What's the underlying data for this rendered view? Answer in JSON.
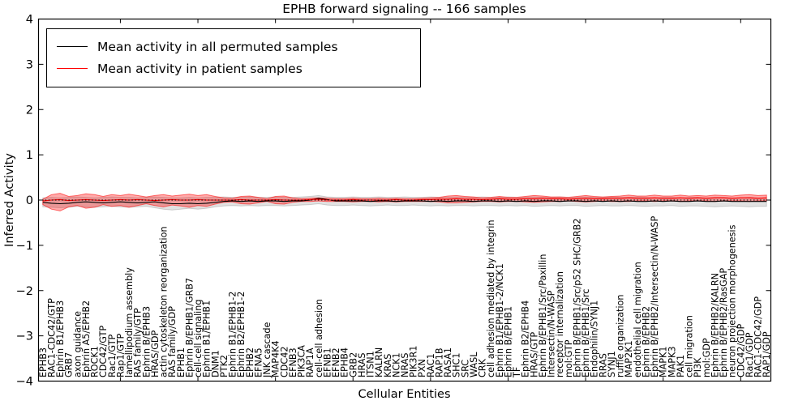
{
  "title": "EPHB forward signaling -- 166 samples",
  "axes": {
    "xlabel": "Cellular Entities",
    "ylabel": "Inferred Activity",
    "yticks": [
      4,
      3,
      2,
      1,
      0,
      -1,
      -2,
      -3,
      -4
    ]
  },
  "legend": [
    {
      "label": "Mean activity in all permuted samples",
      "color": "#000000"
    },
    {
      "label": "Mean activity in patient samples",
      "color": "#ff0000"
    }
  ],
  "colors": {
    "permuted_line": "#000000",
    "permuted_band": "#888888",
    "patient_line": "#ff0000",
    "patient_band": "#ff0000",
    "zero_line": "#000000"
  },
  "chart_data": {
    "type": "line",
    "title": "EPHB forward signaling -- 166 samples",
    "xlabel": "Cellular Entities",
    "ylabel": "Inferred Activity",
    "ylim": [
      -4,
      4
    ],
    "grid": false,
    "legend_position": "upper left",
    "zero_line_dashed": true,
    "categories": [
      "EPHB3",
      "RAC1-CDC42/GTP",
      "Ephrin B1/EPHB3",
      "GRB7",
      "axon guidance",
      "Ephrin A5/EPHB2",
      "ROCK1",
      "CDC42/GTP",
      "Rac1/GTP",
      "Rap1/GTP",
      "lamellipodium assembly",
      "RAS family/GTP",
      "Ephrin B/EPHB3",
      "HRAS/GDP",
      "actin cytoskeleton reorganization",
      "RAS family/GDP",
      "EPHB1",
      "Ephrin B/EPHB1/GRB7",
      "cell-cell signaling",
      "Ephrin B1/EPHB1",
      "DNM1",
      "PTK2",
      "Ephrin B1/EPHB1-2",
      "Ephrin B2/EPHB1-2",
      "EPHB2",
      "EFNA5",
      "JNK cascade",
      "MAP4K4",
      "CDC42",
      "EFNB3",
      "PIK3CA",
      "RAP1A",
      "cell-cell adhesion",
      "EFNB1",
      "EFNB2",
      "EPHB4",
      "GRB2",
      "HRAS",
      "ITSN1",
      "KALRN",
      "KRAS",
      "NCK1",
      "NRAS",
      "PIK3R1",
      "PXN",
      "RAC1",
      "RAP1B",
      "RASA1",
      "SHC1",
      "SRC",
      "WASL",
      "CRK",
      "cell adhesion mediated by integrin",
      "Ephrin B1/EPHB1-2/NCK1",
      "Ephrin B/EPHB1",
      "TF",
      "Ephrin B2/EPHB4",
      "HRAS/GTP",
      "Ephrin B/EPHB1/Src/Paxillin",
      "Intersectin/N-WASP",
      "receptor internalization",
      "mol:GTP",
      "Ephrin B/EPHB1/Src/p52 SHC/GRB2",
      "Ephrin B/EPHB1/Src",
      "Endophilin/SYNJ1",
      "RRAS",
      "SYNJ1",
      "ruffle organization",
      "MAP2K1",
      "endothelial cell migration",
      "Ephrin B/EPHB2",
      "Ephrin B/EPHB2/Intersectin/N-WASP",
      "MAPK1",
      "MAPK3",
      "PAK1",
      "cell migration",
      "PI3K",
      "mol:GDP",
      "Ephrin B/EPHB2/KALRN",
      "Ephrin B/EPHB2/RasGAP",
      "neuron projection morphogenesis",
      "CDC42/GDP",
      "Rac1/GDP",
      "RAC1-CDC42/GDP",
      "RAP1/GDP"
    ],
    "series": [
      {
        "name": "Mean activity in all permuted samples",
        "color": "#000000",
        "band_color": "#888888",
        "values": [
          -0.05,
          -0.07,
          -0.08,
          -0.07,
          -0.05,
          -0.04,
          -0.05,
          -0.06,
          -0.05,
          -0.04,
          -0.05,
          -0.06,
          -0.05,
          -0.04,
          -0.06,
          -0.08,
          -0.08,
          -0.07,
          -0.08,
          -0.07,
          -0.05,
          -0.03,
          -0.02,
          -0.03,
          -0.02,
          -0.03,
          -0.02,
          -0.02,
          -0.03,
          -0.02,
          -0.02,
          0.0,
          0.04,
          0.01,
          -0.02,
          -0.02,
          -0.02,
          -0.02,
          -0.03,
          -0.02,
          -0.02,
          -0.03,
          -0.02,
          -0.02,
          -0.02,
          -0.03,
          -0.02,
          -0.03,
          -0.02,
          -0.02,
          -0.03,
          -0.02,
          -0.02,
          -0.03,
          -0.02,
          -0.03,
          -0.02,
          -0.03,
          -0.02,
          -0.02,
          -0.03,
          -0.02,
          -0.02,
          -0.03,
          -0.02,
          -0.03,
          -0.02,
          -0.03,
          -0.02,
          -0.03,
          -0.03,
          -0.02,
          -0.03,
          -0.02,
          -0.03,
          -0.03,
          -0.02,
          -0.03,
          -0.03,
          -0.02,
          -0.03,
          -0.03,
          -0.03,
          -0.03,
          -0.03
        ],
        "band_upper": [
          0.05,
          0.06,
          0.05,
          0.06,
          0.07,
          0.06,
          0.05,
          0.06,
          0.07,
          0.06,
          0.06,
          0.05,
          0.06,
          0.07,
          0.06,
          0.05,
          0.05,
          0.06,
          0.05,
          0.06,
          0.06,
          0.07,
          0.06,
          0.06,
          0.07,
          0.06,
          0.06,
          0.07,
          0.06,
          0.06,
          0.07,
          0.08,
          0.1,
          0.07,
          0.06,
          0.06,
          0.07,
          0.06,
          0.06,
          0.07,
          0.06,
          0.06,
          0.07,
          0.06,
          0.06,
          0.07,
          0.06,
          0.06,
          0.07,
          0.06,
          0.06,
          0.07,
          0.06,
          0.06,
          0.07,
          0.06,
          0.06,
          0.07,
          0.06,
          0.06,
          0.07,
          0.06,
          0.06,
          0.07,
          0.06,
          0.06,
          0.07,
          0.06,
          0.06,
          0.07,
          0.06,
          0.05,
          0.06,
          0.06,
          0.05,
          0.06,
          0.06,
          0.05,
          0.06,
          0.06,
          0.05,
          0.05,
          0.06,
          0.05,
          0.05
        ],
        "band_lower": [
          -0.15,
          -0.16,
          -0.17,
          -0.16,
          -0.14,
          -0.15,
          -0.16,
          -0.15,
          -0.14,
          -0.15,
          -0.16,
          -0.15,
          -0.14,
          -0.17,
          -0.2,
          -0.22,
          -0.2,
          -0.18,
          -0.2,
          -0.18,
          -0.15,
          -0.13,
          -0.12,
          -0.13,
          -0.12,
          -0.13,
          -0.12,
          -0.12,
          -0.13,
          -0.12,
          -0.11,
          -0.1,
          -0.08,
          -0.11,
          -0.12,
          -0.12,
          -0.11,
          -0.12,
          -0.13,
          -0.12,
          -0.11,
          -0.12,
          -0.12,
          -0.11,
          -0.12,
          -0.13,
          -0.12,
          -0.13,
          -0.12,
          -0.12,
          -0.13,
          -0.12,
          -0.12,
          -0.13,
          -0.12,
          -0.13,
          -0.12,
          -0.14,
          -0.13,
          -0.12,
          -0.13,
          -0.12,
          -0.12,
          -0.14,
          -0.13,
          -0.12,
          -0.13,
          -0.13,
          -0.12,
          -0.13,
          -0.14,
          -0.13,
          -0.13,
          -0.12,
          -0.14,
          -0.13,
          -0.13,
          -0.14,
          -0.15,
          -0.14,
          -0.13,
          -0.14,
          -0.15,
          -0.14,
          -0.14
        ]
      },
      {
        "name": "Mean activity in patient samples",
        "color": "#ff0000",
        "band_color": "#ff0000",
        "values": [
          -0.02,
          0.0,
          0.01,
          -0.01,
          0.0,
          0.01,
          0.0,
          -0.01,
          0.0,
          0.01,
          0.0,
          0.01,
          0.0,
          -0.01,
          0.0,
          0.01,
          0.0,
          0.0,
          0.01,
          0.0,
          0.0,
          0.0,
          0.0,
          0.01,
          0.0,
          0.0,
          0.0,
          0.01,
          0.0,
          0.0,
          0.0,
          0.01,
          0.02,
          0.0,
          0.0,
          0.0,
          0.01,
          0.0,
          0.0,
          0.0,
          0.0,
          0.01,
          0.0,
          0.0,
          0.01,
          0.01,
          0.02,
          0.02,
          0.03,
          0.02,
          0.02,
          0.01,
          0.02,
          0.03,
          0.02,
          0.02,
          0.03,
          0.03,
          0.04,
          0.03,
          0.03,
          0.02,
          0.03,
          0.04,
          0.03,
          0.03,
          0.04,
          0.04,
          0.05,
          0.04,
          0.04,
          0.05,
          0.04,
          0.04,
          0.05,
          0.04,
          0.05,
          0.04,
          0.05,
          0.05,
          0.04,
          0.05,
          0.05,
          0.04,
          0.05
        ],
        "band_upper": [
          0.02,
          0.12,
          0.15,
          0.08,
          0.1,
          0.14,
          0.12,
          0.08,
          0.12,
          0.1,
          0.13,
          0.1,
          0.07,
          0.1,
          0.12,
          0.09,
          0.11,
          0.13,
          0.1,
          0.12,
          0.08,
          0.05,
          0.04,
          0.08,
          0.09,
          0.06,
          0.03,
          0.08,
          0.09,
          0.05,
          0.03,
          0.04,
          0.05,
          0.04,
          0.03,
          0.03,
          0.04,
          0.03,
          0.03,
          0.04,
          0.03,
          0.04,
          0.03,
          0.03,
          0.04,
          0.05,
          0.06,
          0.09,
          0.1,
          0.08,
          0.07,
          0.05,
          0.06,
          0.08,
          0.06,
          0.06,
          0.08,
          0.1,
          0.09,
          0.07,
          0.07,
          0.06,
          0.08,
          0.1,
          0.08,
          0.07,
          0.08,
          0.09,
          0.11,
          0.09,
          0.09,
          0.11,
          0.09,
          0.09,
          0.11,
          0.09,
          0.1,
          0.09,
          0.11,
          0.1,
          0.09,
          0.11,
          0.12,
          0.1,
          0.11
        ],
        "band_lower": [
          -0.1,
          -0.2,
          -0.24,
          -0.15,
          -0.12,
          -0.18,
          -0.16,
          -0.1,
          -0.14,
          -0.12,
          -0.16,
          -0.12,
          -0.08,
          -0.12,
          -0.15,
          -0.11,
          -0.13,
          -0.16,
          -0.12,
          -0.14,
          -0.09,
          -0.05,
          -0.04,
          -0.08,
          -0.09,
          -0.06,
          -0.03,
          -0.08,
          -0.09,
          -0.05,
          -0.03,
          -0.03,
          -0.02,
          -0.03,
          -0.03,
          -0.03,
          -0.04,
          -0.03,
          -0.03,
          -0.04,
          -0.03,
          -0.04,
          -0.03,
          -0.03,
          -0.03,
          -0.03,
          -0.04,
          -0.06,
          -0.06,
          -0.05,
          -0.04,
          -0.03,
          -0.03,
          -0.04,
          -0.03,
          -0.03,
          -0.04,
          -0.05,
          -0.04,
          -0.03,
          -0.03,
          -0.02,
          -0.03,
          -0.04,
          -0.03,
          -0.02,
          -0.03,
          -0.03,
          -0.03,
          -0.02,
          -0.02,
          -0.03,
          -0.02,
          -0.02,
          -0.03,
          -0.02,
          -0.02,
          -0.02,
          -0.03,
          -0.02,
          -0.02,
          -0.02,
          -0.03,
          -0.02,
          -0.02
        ]
      }
    ]
  }
}
